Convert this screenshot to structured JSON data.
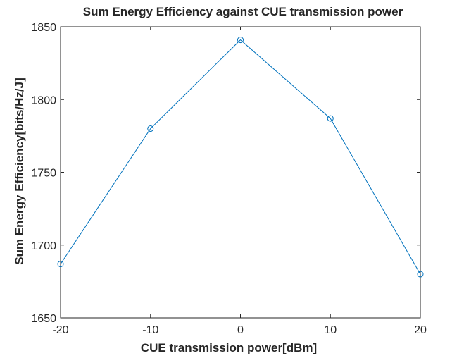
{
  "chart_data": {
    "type": "line",
    "title": "Sum Energy Efficiency against CUE transmission power",
    "xlabel": "CUE transmission power[dBm]",
    "ylabel": "Sum Energy Efficiency[bits/Hz/J]",
    "x": [
      -20,
      -10,
      0,
      10,
      20
    ],
    "series": [
      {
        "values": [
          1687,
          1780,
          1841,
          1787,
          1680
        ]
      }
    ],
    "xlim": [
      -20,
      20
    ],
    "ylim": [
      1650,
      1850
    ],
    "xticks": [
      -20,
      -10,
      0,
      10,
      20
    ],
    "yticks": [
      1650,
      1700,
      1750,
      1800,
      1850
    ],
    "xtick_labels": [
      "-20",
      "-10",
      "0",
      "10",
      "20"
    ],
    "ytick_labels": [
      "1650",
      "1700",
      "1750",
      "1800",
      "1850"
    ],
    "grid": false,
    "line_color": "#0072BD",
    "marker": "circle"
  }
}
